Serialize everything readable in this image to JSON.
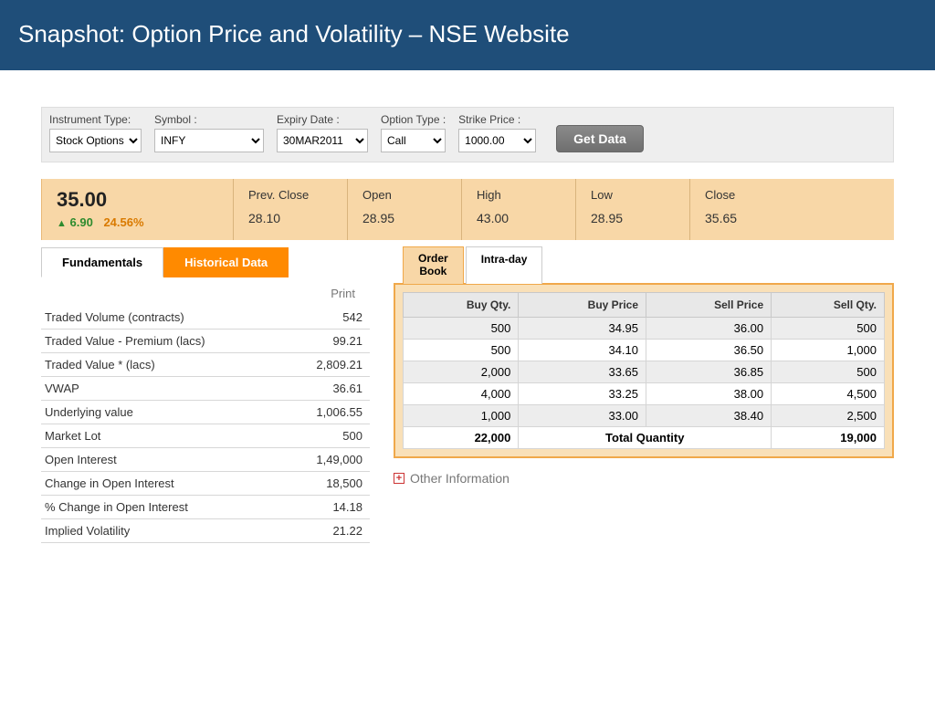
{
  "title": "Snapshot: Option Price and Volatility – NSE Website",
  "filters": {
    "instrument_type": {
      "label": "Instrument Type:",
      "value": "Stock Options"
    },
    "symbol": {
      "label": "Symbol :",
      "value": "INFY"
    },
    "expiry": {
      "label": "Expiry Date :",
      "value": "30MAR2011"
    },
    "option_type": {
      "label": "Option Type :",
      "value": "Call"
    },
    "strike": {
      "label": "Strike Price :",
      "value": "1000.00"
    },
    "button": "Get Data"
  },
  "quote": {
    "last": "35.00",
    "change": "6.90",
    "pct": "24.56%",
    "stats": [
      {
        "label": "Prev. Close",
        "value": "28.10"
      },
      {
        "label": "Open",
        "value": "28.95"
      },
      {
        "label": "High",
        "value": "43.00"
      },
      {
        "label": "Low",
        "value": "28.95"
      },
      {
        "label": "Close",
        "value": "35.65"
      }
    ]
  },
  "tabs": {
    "fundamentals": "Fundamentals",
    "historical": "Historical Data",
    "print": "Print"
  },
  "fundamentals": [
    {
      "k": "Traded Volume (contracts)",
      "v": "542"
    },
    {
      "k": "Traded Value - Premium (lacs)",
      "v": "99.21"
    },
    {
      "k": "Traded Value * (lacs)",
      "v": "2,809.21"
    },
    {
      "k": "VWAP",
      "v": "36.61"
    },
    {
      "k": "Underlying value",
      "v": "1,006.55"
    },
    {
      "k": "Market Lot",
      "v": "500"
    },
    {
      "k": "Open Interest",
      "v": "1,49,000"
    },
    {
      "k": "Change in Open Interest",
      "v": "18,500"
    },
    {
      "k": "% Change in Open Interest",
      "v": "14.18"
    },
    {
      "k": "Implied Volatility",
      "v": "21.22"
    }
  ],
  "orderbook": {
    "tabs": {
      "ob": "Order\nBook",
      "intraday": "Intra-day"
    },
    "headers": [
      "Buy Qty.",
      "Buy Price",
      "Sell Price",
      "Sell Qty."
    ],
    "rows": [
      [
        "500",
        "34.95",
        "36.00",
        "500"
      ],
      [
        "500",
        "34.10",
        "36.50",
        "1,000"
      ],
      [
        "2,000",
        "33.65",
        "36.85",
        "500"
      ],
      [
        "4,000",
        "33.25",
        "38.00",
        "4,500"
      ],
      [
        "1,000",
        "33.00",
        "38.40",
        "2,500"
      ]
    ],
    "total": {
      "buy": "22,000",
      "label": "Total Quantity",
      "sell": "19,000"
    }
  },
  "other_info": "Other Information",
  "colors": {
    "header_bg": "#1f4e79",
    "quote_bg": "#f8d7a7",
    "orange": "#ff8a00",
    "green": "#2e8b2e",
    "orange_text": "#d97a00"
  }
}
